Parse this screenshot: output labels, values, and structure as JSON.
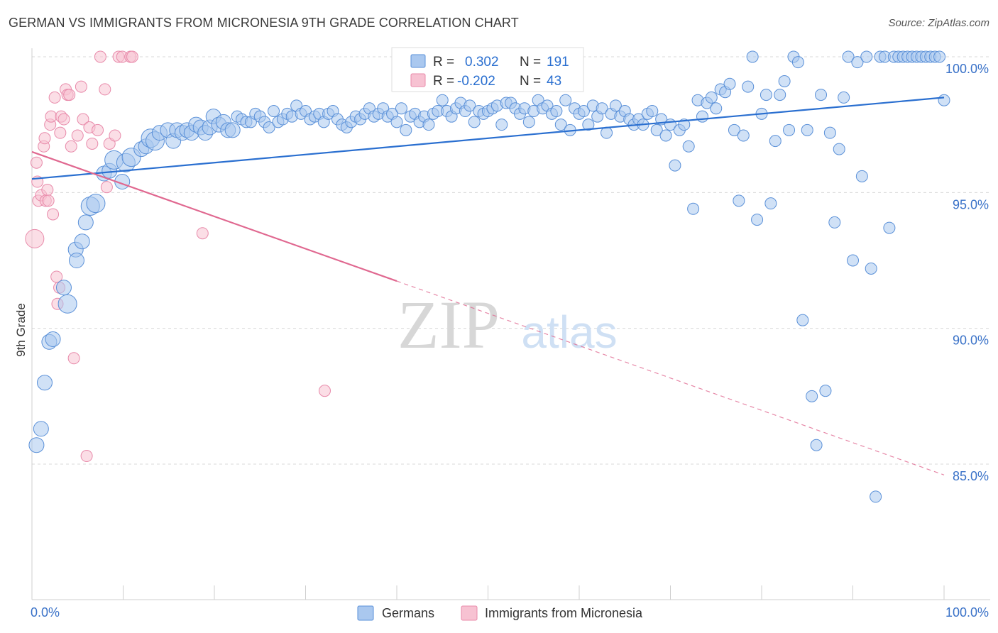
{
  "title": "GERMAN VS IMMIGRANTS FROM MICRONESIA 9TH GRADE CORRELATION CHART",
  "source": "Source: ZipAtlas.com",
  "watermark": {
    "zip": "ZIP",
    "atlas": "atlas"
  },
  "colors": {
    "german_fill": "#aac8ef",
    "german_stroke": "#5a90d8",
    "german_line": "#2a6fd0",
    "micro_fill": "#f7c2d2",
    "micro_stroke": "#e88aaa",
    "micro_line": "#e06890",
    "tick_label": "#3a72c8",
    "grid": "#d8d8d8"
  },
  "legend_box": {
    "rows": [
      {
        "r_label": "R =",
        "r_value": "0.302",
        "n_label": "N =",
        "n_value": "191"
      },
      {
        "r_label": "R =",
        "r_value": "-0.202",
        "n_label": "N =",
        "n_value": "43"
      }
    ]
  },
  "chart_data": {
    "type": "scatter",
    "title": "GERMAN VS IMMIGRANTS FROM MICRONESIA 9TH GRADE CORRELATION CHART",
    "xlabel": "",
    "ylabel": "9th Grade",
    "xlim": [
      0,
      100
    ],
    "ylim": [
      80.0,
      101.0
    ],
    "x_tick_labels": [
      "0.0%",
      "100.0%"
    ],
    "y_ticks": [
      85.0,
      90.0,
      95.0,
      100.0
    ],
    "y_tick_labels": [
      "85.0%",
      "90.0%",
      "95.0%",
      "100.0%"
    ],
    "grid": true,
    "legend": "bottom-center",
    "series": [
      {
        "name": "Germans",
        "color": "#aac8ef",
        "r": 0.302,
        "n": 191,
        "trend": {
          "x": [
            0,
            100
          ],
          "y": [
            95.5,
            98.5
          ],
          "dashed_from": null
        },
        "points": [
          [
            0.5,
            85.7,
            2
          ],
          [
            1.0,
            86.3,
            2
          ],
          [
            1.4,
            88.0,
            2
          ],
          [
            1.9,
            89.5,
            2
          ],
          [
            2.3,
            89.6,
            2
          ],
          [
            3.5,
            91.5,
            2
          ],
          [
            3.9,
            90.9,
            3
          ],
          [
            4.8,
            92.9,
            2
          ],
          [
            4.9,
            92.5,
            2
          ],
          [
            5.5,
            93.2,
            2
          ],
          [
            5.9,
            93.9,
            2
          ],
          [
            6.4,
            94.5,
            3
          ],
          [
            7.0,
            94.6,
            3
          ],
          [
            7.9,
            95.7,
            2
          ],
          [
            8.5,
            95.8,
            2
          ],
          [
            9.0,
            96.2,
            3
          ],
          [
            9.9,
            95.4,
            2
          ],
          [
            10.3,
            96.1,
            3
          ],
          [
            10.9,
            96.3,
            3
          ],
          [
            12.0,
            96.6,
            2
          ],
          [
            12.5,
            96.7,
            2
          ],
          [
            13.0,
            97.0,
            3
          ],
          [
            13.5,
            96.9,
            3
          ],
          [
            14.0,
            97.2,
            2
          ],
          [
            14.9,
            97.3,
            2
          ],
          [
            15.5,
            96.9,
            2
          ],
          [
            15.9,
            97.3,
            2
          ],
          [
            16.5,
            97.2,
            2
          ],
          [
            17.0,
            97.3,
            2
          ],
          [
            17.5,
            97.2,
            2
          ],
          [
            18.0,
            97.5,
            2
          ],
          [
            18.5,
            97.4,
            2
          ],
          [
            19.0,
            97.2,
            2
          ],
          [
            19.5,
            97.4,
            2
          ],
          [
            19.9,
            97.8,
            2
          ],
          [
            20.5,
            97.5,
            2
          ],
          [
            21.0,
            97.6,
            2
          ],
          [
            21.5,
            97.3,
            2
          ],
          [
            22.0,
            97.3,
            2
          ],
          [
            22.5,
            97.8,
            1
          ],
          [
            23.0,
            97.7,
            1
          ],
          [
            23.5,
            97.6,
            1
          ],
          [
            24.0,
            97.6,
            1
          ],
          [
            24.5,
            97.9,
            1
          ],
          [
            25.0,
            97.8,
            1
          ],
          [
            25.5,
            97.6,
            1
          ],
          [
            26.0,
            97.4,
            1
          ],
          [
            26.5,
            98.0,
            1
          ],
          [
            27.0,
            97.6,
            1
          ],
          [
            27.5,
            97.7,
            1
          ],
          [
            28.0,
            97.9,
            1
          ],
          [
            28.5,
            97.8,
            1
          ],
          [
            29.0,
            98.2,
            1
          ],
          [
            29.5,
            97.9,
            1
          ],
          [
            30.0,
            98.0,
            1
          ],
          [
            30.5,
            97.7,
            1
          ],
          [
            31.0,
            97.8,
            1
          ],
          [
            31.5,
            97.9,
            1
          ],
          [
            32.0,
            97.6,
            1
          ],
          [
            32.5,
            97.9,
            1
          ],
          [
            33.0,
            98.0,
            1
          ],
          [
            33.5,
            97.7,
            1
          ],
          [
            34.0,
            97.5,
            1
          ],
          [
            34.5,
            97.4,
            1
          ],
          [
            35.0,
            97.6,
            1
          ],
          [
            35.5,
            97.8,
            1
          ],
          [
            36.0,
            97.7,
            1
          ],
          [
            36.5,
            97.9,
            1
          ],
          [
            37.0,
            98.1,
            1
          ],
          [
            37.5,
            97.8,
            1
          ],
          [
            38.0,
            97.9,
            1
          ],
          [
            38.5,
            98.1,
            1
          ],
          [
            39.0,
            97.8,
            1
          ],
          [
            39.5,
            97.9,
            1
          ],
          [
            40.0,
            97.6,
            1
          ],
          [
            40.5,
            98.1,
            1
          ],
          [
            41.0,
            97.3,
            1
          ],
          [
            41.5,
            97.8,
            1
          ],
          [
            42.0,
            97.9,
            1
          ],
          [
            42.5,
            97.6,
            1
          ],
          [
            43.0,
            97.8,
            1
          ],
          [
            43.5,
            97.5,
            1
          ],
          [
            44.0,
            97.9,
            1
          ],
          [
            44.5,
            98.0,
            1
          ],
          [
            45.0,
            98.4,
            1
          ],
          [
            45.5,
            98.0,
            1
          ],
          [
            46.0,
            97.8,
            1
          ],
          [
            46.5,
            98.1,
            1
          ],
          [
            47.0,
            98.3,
            1
          ],
          [
            47.5,
            98.0,
            1
          ],
          [
            48.0,
            98.2,
            1
          ],
          [
            48.5,
            97.6,
            1
          ],
          [
            49.0,
            98.0,
            1
          ],
          [
            49.5,
            97.9,
            1
          ],
          [
            50.0,
            98.0,
            1
          ],
          [
            50.5,
            98.1,
            1
          ],
          [
            51.0,
            98.2,
            1
          ],
          [
            51.5,
            97.5,
            1
          ],
          [
            52.0,
            98.3,
            1
          ],
          [
            52.5,
            98.3,
            1
          ],
          [
            53.0,
            98.1,
            1
          ],
          [
            53.5,
            97.9,
            1
          ],
          [
            54.0,
            98.1,
            1
          ],
          [
            54.5,
            97.6,
            1
          ],
          [
            55.0,
            98.0,
            1
          ],
          [
            55.5,
            98.4,
            1
          ],
          [
            56.0,
            98.1,
            1
          ],
          [
            56.5,
            98.2,
            1
          ],
          [
            57.0,
            97.9,
            1
          ],
          [
            57.5,
            98.0,
            1
          ],
          [
            58.0,
            97.5,
            1
          ],
          [
            58.5,
            98.4,
            1
          ],
          [
            59.0,
            97.3,
            1
          ],
          [
            59.5,
            98.1,
            1
          ],
          [
            60.0,
            97.9,
            1
          ],
          [
            60.5,
            98.0,
            1
          ],
          [
            61.0,
            97.5,
            1
          ],
          [
            61.5,
            98.2,
            1
          ],
          [
            62.0,
            97.8,
            1
          ],
          [
            62.5,
            98.1,
            1
          ],
          [
            63.0,
            97.2,
            1
          ],
          [
            63.5,
            97.9,
            1
          ],
          [
            64.0,
            98.2,
            1
          ],
          [
            64.5,
            97.8,
            1
          ],
          [
            65.0,
            98.0,
            1
          ],
          [
            65.5,
            97.7,
            1
          ],
          [
            66.0,
            97.5,
            1
          ],
          [
            66.5,
            97.7,
            1
          ],
          [
            67.0,
            97.5,
            1
          ],
          [
            67.5,
            97.9,
            1
          ],
          [
            68.0,
            98.0,
            1
          ],
          [
            68.5,
            97.3,
            1
          ],
          [
            69.0,
            97.7,
            1
          ],
          [
            69.5,
            97.1,
            1
          ],
          [
            70.0,
            97.5,
            1
          ],
          [
            70.5,
            96.0,
            1
          ],
          [
            71.0,
            97.3,
            1
          ],
          [
            71.5,
            97.5,
            1
          ],
          [
            72.0,
            96.7,
            1
          ],
          [
            72.5,
            94.4,
            1
          ],
          [
            73.0,
            98.4,
            1
          ],
          [
            73.5,
            97.8,
            1
          ],
          [
            74.0,
            98.3,
            1
          ],
          [
            74.5,
            98.5,
            1
          ],
          [
            75.0,
            98.1,
            1
          ],
          [
            75.5,
            98.8,
            1
          ],
          [
            76.0,
            98.7,
            1
          ],
          [
            76.5,
            99.0,
            1
          ],
          [
            77.0,
            97.3,
            1
          ],
          [
            77.5,
            94.7,
            1
          ],
          [
            78.0,
            97.1,
            1
          ],
          [
            78.5,
            98.9,
            1
          ],
          [
            79.0,
            100.0,
            1
          ],
          [
            79.5,
            94.0,
            1
          ],
          [
            80.0,
            97.9,
            1
          ],
          [
            80.5,
            98.6,
            1
          ],
          [
            81.0,
            94.6,
            1
          ],
          [
            81.5,
            96.9,
            1
          ],
          [
            82.0,
            98.6,
            1
          ],
          [
            82.5,
            99.1,
            1
          ],
          [
            83.0,
            97.3,
            1
          ],
          [
            83.5,
            100.0,
            1
          ],
          [
            84.0,
            99.8,
            1
          ],
          [
            84.5,
            90.3,
            1
          ],
          [
            85.0,
            97.3,
            1
          ],
          [
            85.5,
            87.5,
            1
          ],
          [
            86.0,
            85.7,
            1
          ],
          [
            86.5,
            98.6,
            1
          ],
          [
            87.0,
            87.7,
            1
          ],
          [
            87.5,
            97.2,
            1
          ],
          [
            88.0,
            93.9,
            1
          ],
          [
            88.5,
            96.6,
            1
          ],
          [
            89.0,
            98.5,
            1
          ],
          [
            89.5,
            100.0,
            1
          ],
          [
            90.0,
            92.5,
            1
          ],
          [
            90.5,
            99.8,
            1
          ],
          [
            91.0,
            95.6,
            1
          ],
          [
            91.5,
            100.0,
            1
          ],
          [
            92.0,
            92.2,
            1
          ],
          [
            92.5,
            83.8,
            1
          ],
          [
            93.0,
            100.0,
            1
          ],
          [
            93.5,
            100.0,
            1
          ],
          [
            94.0,
            93.7,
            1
          ],
          [
            94.5,
            100.0,
            1
          ],
          [
            95.0,
            100.0,
            1
          ],
          [
            95.5,
            100.0,
            1
          ],
          [
            96.0,
            100.0,
            1
          ],
          [
            96.5,
            100.0,
            1
          ],
          [
            97.0,
            100.0,
            1
          ],
          [
            97.5,
            100.0,
            1
          ],
          [
            98.0,
            100.0,
            1
          ],
          [
            98.5,
            100.0,
            1
          ],
          [
            99.0,
            100.0,
            1
          ],
          [
            99.5,
            100.0,
            1
          ],
          [
            100.0,
            98.4,
            1
          ]
        ]
      },
      {
        "name": "Immigrants from Micronesia",
        "color": "#f7c2d2",
        "r": -0.202,
        "n": 43,
        "trend": {
          "x": [
            0,
            100
          ],
          "y": [
            96.5,
            84.6
          ],
          "dashed_from": 40
        },
        "points": [
          [
            0.3,
            93.3,
            3
          ],
          [
            0.5,
            96.1,
            1
          ],
          [
            0.6,
            95.4,
            1
          ],
          [
            0.7,
            94.7,
            1
          ],
          [
            1.0,
            94.9,
            1
          ],
          [
            1.3,
            96.7,
            1
          ],
          [
            1.4,
            97.0,
            1
          ],
          [
            1.5,
            94.7,
            1
          ],
          [
            1.7,
            95.1,
            1
          ],
          [
            1.8,
            94.7,
            1
          ],
          [
            2.0,
            97.5,
            1
          ],
          [
            2.1,
            97.8,
            1
          ],
          [
            2.3,
            94.2,
            1
          ],
          [
            2.5,
            98.5,
            1
          ],
          [
            2.7,
            91.9,
            1
          ],
          [
            2.8,
            90.9,
            1
          ],
          [
            3.0,
            91.5,
            1
          ],
          [
            3.1,
            97.2,
            1
          ],
          [
            3.2,
            97.8,
            1
          ],
          [
            3.5,
            97.7,
            1
          ],
          [
            3.7,
            98.8,
            1
          ],
          [
            3.9,
            98.6,
            1
          ],
          [
            4.1,
            98.6,
            1
          ],
          [
            4.3,
            96.7,
            1
          ],
          [
            4.6,
            88.9,
            1
          ],
          [
            5.0,
            97.1,
            1
          ],
          [
            5.4,
            98.9,
            1
          ],
          [
            5.6,
            97.7,
            1
          ],
          [
            6.0,
            85.3,
            1
          ],
          [
            6.3,
            97.4,
            1
          ],
          [
            6.6,
            96.8,
            1
          ],
          [
            7.2,
            97.3,
            1
          ],
          [
            7.5,
            100.0,
            1
          ],
          [
            8.0,
            98.8,
            1
          ],
          [
            8.2,
            95.2,
            1
          ],
          [
            8.5,
            96.8,
            1
          ],
          [
            9.1,
            97.1,
            1
          ],
          [
            9.5,
            100.0,
            1
          ],
          [
            9.9,
            100.0,
            1
          ],
          [
            10.8,
            100.0,
            1
          ],
          [
            11.0,
            100.0,
            1
          ],
          [
            18.7,
            93.5,
            1
          ],
          [
            32.1,
            87.7,
            1
          ]
        ]
      }
    ]
  }
}
